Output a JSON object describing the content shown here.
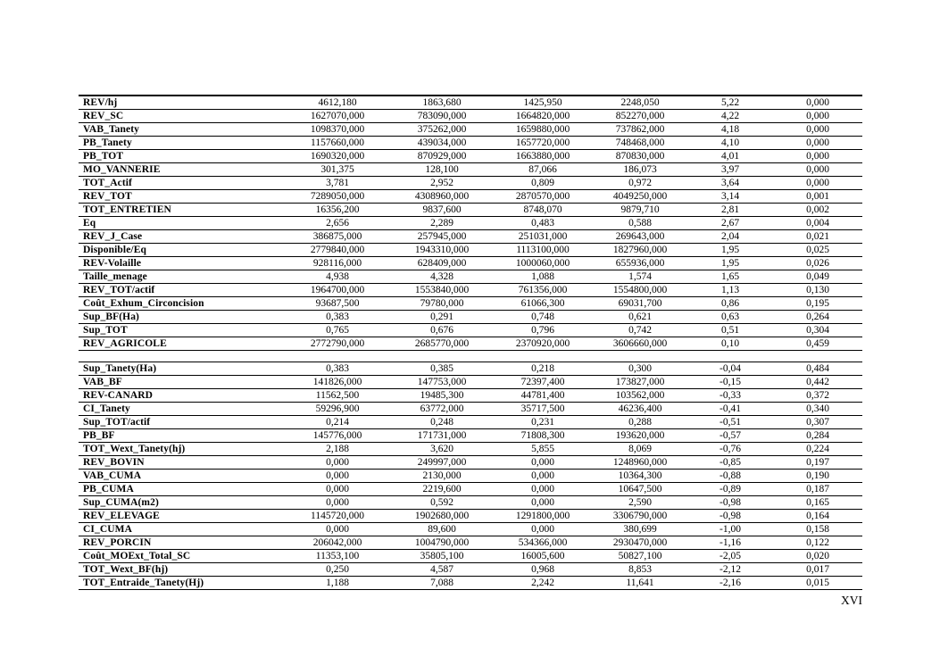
{
  "page": {
    "number": "XVI"
  },
  "tables": [
    {
      "name": "upper-comparison-table",
      "rows": [
        {
          "label": "REV/hj",
          "values": [
            "4612,180",
            "1863,680",
            "1425,950",
            "2248,050",
            "5,22",
            "0,000"
          ]
        },
        {
          "label": "REV_SC",
          "values": [
            "1627070,000",
            "783090,000",
            "1664820,000",
            "852270,000",
            "4,22",
            "0,000"
          ]
        },
        {
          "label": "VAB_Tanety",
          "values": [
            "1098370,000",
            "375262,000",
            "1659880,000",
            "737862,000",
            "4,18",
            "0,000"
          ]
        },
        {
          "label": "PB_Tanety",
          "values": [
            "1157660,000",
            "439034,000",
            "1657720,000",
            "748468,000",
            "4,10",
            "0,000"
          ]
        },
        {
          "label": "PB_TOT",
          "values": [
            "1690320,000",
            "870929,000",
            "1663880,000",
            "870830,000",
            "4,01",
            "0,000"
          ]
        },
        {
          "label": "MO_VANNERIE",
          "values": [
            "301,375",
            "128,100",
            "87,066",
            "186,073",
            "3,97",
            "0,000"
          ]
        },
        {
          "label": "TOT_Actif",
          "values": [
            "3,781",
            "2,952",
            "0,809",
            "0,972",
            "3,64",
            "0,000"
          ]
        },
        {
          "label": "REV_TOT",
          "values": [
            "7289050,000",
            "4308960,000",
            "2870570,000",
            "4049250,000",
            "3,14",
            "0,001"
          ]
        },
        {
          "label": "TOT_ENTRETIEN",
          "values": [
            "16356,200",
            "9837,600",
            "8748,070",
            "9879,710",
            "2,81",
            "0,002"
          ]
        },
        {
          "label": "Eq",
          "values": [
            "2,656",
            "2,289",
            "0,483",
            "0,588",
            "2,67",
            "0,004"
          ]
        },
        {
          "label": "REV_J_Case",
          "values": [
            "386875,000",
            "257945,000",
            "251031,000",
            "269643,000",
            "2,04",
            "0,021"
          ]
        },
        {
          "label": "Disponible/Eq",
          "values": [
            "2779840,000",
            "1943310,000",
            "1113100,000",
            "1827960,000",
            "1,95",
            "0,025"
          ]
        },
        {
          "label": "REV-Volaille",
          "values": [
            "928116,000",
            "628409,000",
            "1000060,000",
            "655936,000",
            "1,95",
            "0,026"
          ]
        },
        {
          "label": "Taille_menage",
          "values": [
            "4,938",
            "4,328",
            "1,088",
            "1,574",
            "1,65",
            "0,049"
          ]
        },
        {
          "label": "REV_TOT/actif",
          "values": [
            "1964700,000",
            "1553840,000",
            "761356,000",
            "1554800,000",
            "1,13",
            "0,130"
          ]
        },
        {
          "label": "Coût_Exhum_Circoncision",
          "values": [
            "93687,500",
            "79780,000",
            "61066,300",
            "69031,700",
            "0,86",
            "0,195"
          ]
        },
        {
          "label": "Sup_BF(Ha)",
          "values": [
            "0,383",
            "0,291",
            "0,748",
            "0,621",
            "0,63",
            "0,264"
          ]
        },
        {
          "label": "Sup_TOT",
          "values": [
            "0,765",
            "0,676",
            "0,796",
            "0,742",
            "0,51",
            "0,304"
          ]
        },
        {
          "label": "REV_AGRICOLE",
          "values": [
            "2772790,000",
            "2685770,000",
            "2370920,000",
            "3606660,000",
            "0,10",
            "0,459"
          ]
        }
      ]
    },
    {
      "name": "lower-comparison-table",
      "rows": [
        {
          "label": "Sup_Tanety(Ha)",
          "values": [
            "0,383",
            "0,385",
            "0,218",
            "0,300",
            "-0,04",
            "0,484"
          ]
        },
        {
          "label": "VAB_BF",
          "values": [
            "141826,000",
            "147753,000",
            "72397,400",
            "173827,000",
            "-0,15",
            "0,442"
          ]
        },
        {
          "label": "REV-CANARD",
          "values": [
            "11562,500",
            "19485,300",
            "44781,400",
            "103562,000",
            "-0,33",
            "0,372"
          ]
        },
        {
          "label": "CI_Tanety",
          "values": [
            "59296,900",
            "63772,000",
            "35717,500",
            "46236,400",
            "-0,41",
            "0,340"
          ]
        },
        {
          "label": "Sup_TOT/actif",
          "values": [
            "0,214",
            "0,248",
            "0,231",
            "0,288",
            "-0,51",
            "0,307"
          ]
        },
        {
          "label": "PB_BF",
          "values": [
            "145776,000",
            "171731,000",
            "71808,300",
            "193620,000",
            "-0,57",
            "0,284"
          ]
        },
        {
          "label": "TOT_Wext_Tanety(hj)",
          "values": [
            "2,188",
            "3,620",
            "5,855",
            "8,069",
            "-0,76",
            "0,224"
          ]
        },
        {
          "label": "REV_BOVIN",
          "values": [
            "0,000",
            "249997,000",
            "0,000",
            "1248960,000",
            "-0,85",
            "0,197"
          ]
        },
        {
          "label": "VAB_CUMA",
          "values": [
            "0,000",
            "2130,000",
            "0,000",
            "10364,300",
            "-0,88",
            "0,190"
          ]
        },
        {
          "label": "PB_CUMA",
          "values": [
            "0,000",
            "2219,600",
            "0,000",
            "10647,500",
            "-0,89",
            "0,187"
          ]
        },
        {
          "label": "Sup_CUMA(m2)",
          "values": [
            "0,000",
            "0,592",
            "0,000",
            "2,590",
            "-0,98",
            "0,165"
          ]
        },
        {
          "label": "REV_ELEVAGE",
          "values": [
            "1145720,000",
            "1902680,000",
            "1291800,000",
            "3306790,000",
            "-0,98",
            "0,164"
          ]
        },
        {
          "label": "CI_CUMA",
          "values": [
            "0,000",
            "89,600",
            "0,000",
            "380,699",
            "-1,00",
            "0,158"
          ]
        },
        {
          "label": "REV_PORCIN",
          "values": [
            "206042,000",
            "1004790,000",
            "534366,000",
            "2930470,000",
            "-1,16",
            "0,122"
          ]
        },
        {
          "label": "Coût_MOExt_Total_SC",
          "values": [
            "11353,100",
            "35805,100",
            "16005,600",
            "50827,100",
            "-2,05",
            "0,020"
          ]
        },
        {
          "label": "TOT_Wext_BF(hj)",
          "values": [
            "0,250",
            "4,587",
            "0,968",
            "8,853",
            "-2,12",
            "0,017"
          ]
        },
        {
          "label": "TOT_Entraide_Tanety(Hj)",
          "values": [
            "1,188",
            "7,088",
            "2,242",
            "11,641",
            "-2,16",
            "0,015"
          ]
        }
      ]
    }
  ]
}
